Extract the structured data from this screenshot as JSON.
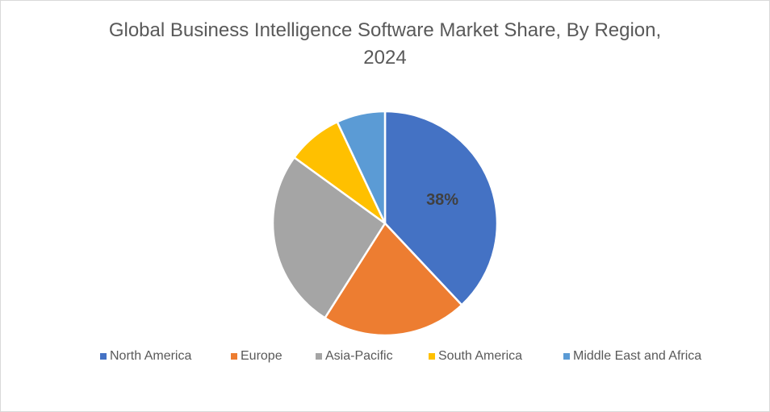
{
  "chart_data": {
    "type": "pie",
    "title": "Global Business Intelligence Software Market Share, By Region, 2024",
    "categories": [
      "North America",
      "Europe",
      "Asia-Pacific",
      "South America",
      "Middle East and Africa"
    ],
    "values": [
      38,
      21,
      26,
      8,
      7
    ],
    "value_labels": [
      "38%",
      null,
      null,
      null,
      null
    ],
    "colors": [
      "#4472c4",
      "#ed7d31",
      "#a5a5a5",
      "#ffc000",
      "#5b9bd5"
    ],
    "legend": "bottom"
  }
}
